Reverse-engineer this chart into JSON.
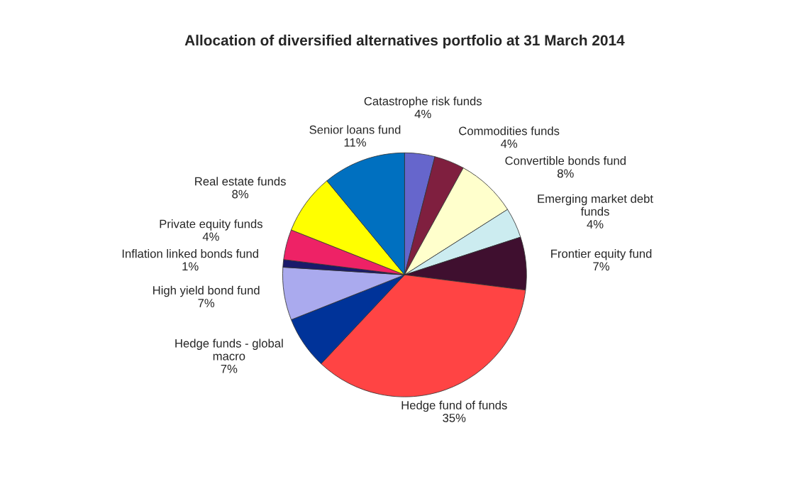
{
  "chart_data": {
    "type": "pie",
    "title": "Allocation of diversified alternatives portfolio at 31 March 2014",
    "categories": [
      "Catastrophe risk funds",
      "Commodities funds",
      "Convertible bonds fund",
      "Emerging market debt\nfunds",
      "Frontier equity fund",
      "Hedge fund of funds",
      "Hedge funds - global\nmacro",
      "High yield bond fund",
      "Inflation linked bonds fund",
      "Private equity funds",
      "Real estate funds",
      "Senior loans fund"
    ],
    "values": [
      4,
      4,
      8,
      4,
      7,
      35,
      7,
      7,
      1,
      4,
      8,
      11
    ],
    "value_labels": [
      "4%",
      "4%",
      "8%",
      "4%",
      "7%",
      "35%",
      "7%",
      "7%",
      "1%",
      "4%",
      "8%",
      "11%"
    ],
    "colors": [
      "#6666cc",
      "#7f1f3f",
      "#ffffcc",
      "#ccecf0",
      "#3f0f2f",
      "#ff4444",
      "#003399",
      "#aaaaee",
      "#1a1a6a",
      "#ee2266",
      "#ffff00",
      "#0070c0"
    ],
    "legend": false
  }
}
